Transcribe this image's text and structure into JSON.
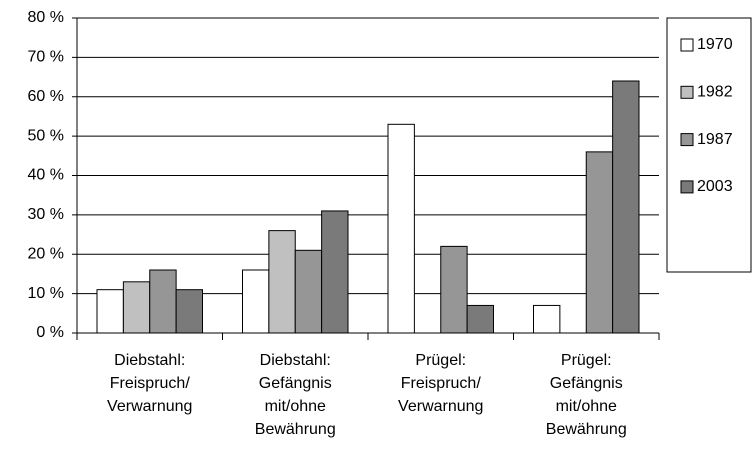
{
  "chart_data": {
    "type": "bar",
    "categories": [
      "Diebstahl:\nFreispruch/\nVerwarnung",
      "Diebstahl:\nGefängnis\nmit/ohne\nBewährung",
      "Prügel:\nFreispruch/\nVerwarnung",
      "Prügel:\nGefängnis\nmit/ohne\nBewährung"
    ],
    "series": [
      {
        "name": "1970",
        "color": "#ffffff",
        "values": [
          11,
          16,
          53,
          7
        ]
      },
      {
        "name": "1982",
        "color": "#c0c0c0",
        "values": [
          13,
          26,
          0,
          0
        ]
      },
      {
        "name": "1987",
        "color": "#969696",
        "values": [
          16,
          21,
          22,
          46
        ]
      },
      {
        "name": "2003",
        "color": "#7a7a7a",
        "values": [
          11,
          31,
          7,
          64
        ]
      }
    ],
    "ylim": [
      0,
      80
    ],
    "yticks": [
      {
        "value": 0,
        "label": "0 %"
      },
      {
        "value": 10,
        "label": "10 %"
      },
      {
        "value": 20,
        "label": "20 %"
      },
      {
        "value": 30,
        "label": "30 %"
      },
      {
        "value": 40,
        "label": "40 %"
      },
      {
        "value": 50,
        "label": "50 %"
      },
      {
        "value": 60,
        "label": "60 %"
      },
      {
        "value": 70,
        "label": "70 %"
      },
      {
        "value": 80,
        "label": "80 %"
      }
    ],
    "grid": true,
    "legend": "right"
  }
}
